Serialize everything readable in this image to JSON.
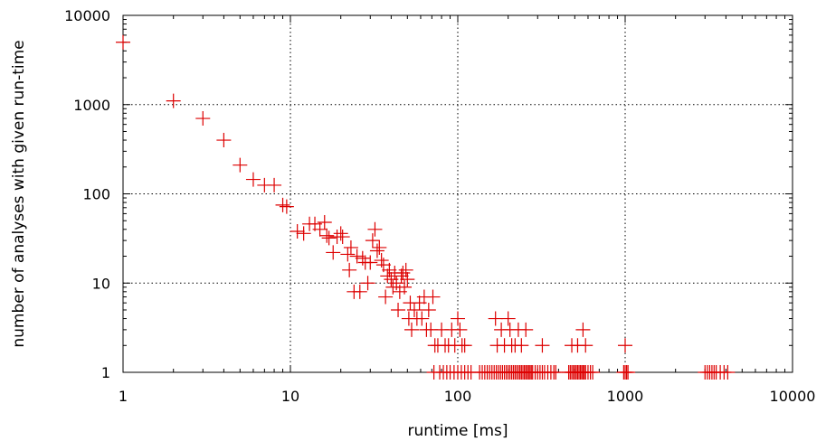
{
  "chart_data": {
    "type": "scatter",
    "title": "",
    "xlabel": "runtime [ms]",
    "ylabel": "number of analyses with given run-time",
    "xscale": "log",
    "yscale": "log",
    "xlim": [
      1,
      10000
    ],
    "ylim": [
      1,
      10000
    ],
    "grid": true,
    "marker": "plus",
    "color": "#dd0000",
    "x_ticks": [
      1,
      10,
      100,
      1000,
      10000
    ],
    "x_tick_labels": [
      "1",
      "10",
      "100",
      "1000",
      "10000"
    ],
    "y_ticks": [
      1,
      10,
      100,
      1000,
      10000
    ],
    "y_tick_labels": [
      "1",
      "10",
      "100",
      "1000",
      "10000"
    ],
    "points": [
      [
        1,
        5000
      ],
      [
        2,
        1100
      ],
      [
        3,
        700
      ],
      [
        4,
        400
      ],
      [
        5,
        210
      ],
      [
        6,
        145
      ],
      [
        7,
        125
      ],
      [
        8,
        125
      ],
      [
        9,
        75
      ],
      [
        9.5,
        72
      ],
      [
        11,
        38
      ],
      [
        12,
        36
      ],
      [
        13,
        46
      ],
      [
        14,
        46
      ],
      [
        15,
        40
      ],
      [
        16,
        48
      ],
      [
        16.5,
        34
      ],
      [
        17,
        32
      ],
      [
        18,
        22
      ],
      [
        19,
        33
      ],
      [
        20,
        36
      ],
      [
        20.5,
        33
      ],
      [
        22,
        21
      ],
      [
        22.5,
        14
      ],
      [
        23,
        25
      ],
      [
        24,
        8
      ],
      [
        25,
        20
      ],
      [
        26,
        8
      ],
      [
        27,
        19
      ],
      [
        28,
        17
      ],
      [
        29,
        10
      ],
      [
        30,
        17
      ],
      [
        31,
        30
      ],
      [
        32,
        40
      ],
      [
        33,
        23
      ],
      [
        34,
        25
      ],
      [
        35,
        18
      ],
      [
        36,
        16
      ],
      [
        37,
        7
      ],
      [
        38,
        12
      ],
      [
        39,
        14
      ],
      [
        40,
        11
      ],
      [
        41,
        9
      ],
      [
        42,
        13
      ],
      [
        43,
        10
      ],
      [
        44,
        5
      ],
      [
        45,
        8
      ],
      [
        46,
        12
      ],
      [
        47,
        13
      ],
      [
        48,
        9
      ],
      [
        49,
        14
      ],
      [
        50,
        11
      ],
      [
        51,
        4
      ],
      [
        52,
        6
      ],
      [
        53,
        3
      ],
      [
        55,
        5
      ],
      [
        57,
        4
      ],
      [
        59,
        6
      ],
      [
        61,
        4
      ],
      [
        63,
        7
      ],
      [
        65,
        3
      ],
      [
        67,
        5
      ],
      [
        69,
        3
      ],
      [
        71,
        7
      ],
      [
        73,
        2
      ],
      [
        76,
        2
      ],
      [
        80,
        3
      ],
      [
        84,
        2
      ],
      [
        88,
        2
      ],
      [
        92,
        3
      ],
      [
        96,
        2
      ],
      [
        100,
        4
      ],
      [
        103,
        3
      ],
      [
        106,
        2
      ],
      [
        110,
        2
      ],
      [
        168,
        4
      ],
      [
        172,
        2
      ],
      [
        182,
        3
      ],
      [
        190,
        2
      ],
      [
        200,
        4
      ],
      [
        205,
        3
      ],
      [
        210,
        2
      ],
      [
        220,
        2
      ],
      [
        230,
        3
      ],
      [
        240,
        2
      ],
      [
        255,
        3
      ],
      [
        320,
        2
      ],
      [
        480,
        2
      ],
      [
        520,
        2
      ],
      [
        560,
        3
      ],
      [
        580,
        2
      ],
      [
        1000,
        2
      ],
      [
        72,
        1
      ],
      [
        78,
        1
      ],
      [
        82,
        1
      ],
      [
        86,
        1
      ],
      [
        90,
        1
      ],
      [
        95,
        1
      ],
      [
        100,
        1
      ],
      [
        105,
        1
      ],
      [
        110,
        1
      ],
      [
        115,
        1
      ],
      [
        120,
        1
      ],
      [
        135,
        1
      ],
      [
        140,
        1
      ],
      [
        145,
        1
      ],
      [
        150,
        1
      ],
      [
        155,
        1
      ],
      [
        160,
        1
      ],
      [
        165,
        1
      ],
      [
        170,
        1
      ],
      [
        175,
        1
      ],
      [
        180,
        1
      ],
      [
        185,
        1
      ],
      [
        190,
        1
      ],
      [
        195,
        1
      ],
      [
        200,
        1
      ],
      [
        205,
        1
      ],
      [
        210,
        1
      ],
      [
        215,
        1
      ],
      [
        220,
        1
      ],
      [
        225,
        1
      ],
      [
        230,
        1
      ],
      [
        235,
        1
      ],
      [
        240,
        1
      ],
      [
        245,
        1
      ],
      [
        250,
        1
      ],
      [
        255,
        1
      ],
      [
        260,
        1
      ],
      [
        265,
        1
      ],
      [
        270,
        1
      ],
      [
        275,
        1
      ],
      [
        280,
        1
      ],
      [
        290,
        1
      ],
      [
        300,
        1
      ],
      [
        310,
        1
      ],
      [
        320,
        1
      ],
      [
        330,
        1
      ],
      [
        345,
        1
      ],
      [
        360,
        1
      ],
      [
        375,
        1
      ],
      [
        385,
        1
      ],
      [
        460,
        1
      ],
      [
        470,
        1
      ],
      [
        480,
        1
      ],
      [
        490,
        1
      ],
      [
        500,
        1
      ],
      [
        510,
        1
      ],
      [
        520,
        1
      ],
      [
        530,
        1
      ],
      [
        540,
        1
      ],
      [
        550,
        1
      ],
      [
        560,
        1
      ],
      [
        570,
        1
      ],
      [
        580,
        1
      ],
      [
        600,
        1
      ],
      [
        620,
        1
      ],
      [
        640,
        1
      ],
      [
        980,
        1
      ],
      [
        1000,
        1
      ],
      [
        1020,
        1
      ],
      [
        1040,
        1
      ],
      [
        3000,
        1
      ],
      [
        3100,
        1
      ],
      [
        3200,
        1
      ],
      [
        3300,
        1
      ],
      [
        3400,
        1
      ],
      [
        3500,
        1
      ],
      [
        3700,
        1
      ],
      [
        3900,
        1
      ],
      [
        4100,
        1
      ]
    ]
  }
}
